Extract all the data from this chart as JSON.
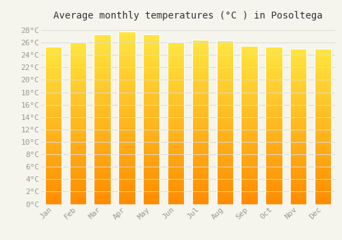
{
  "title": "Average monthly temperatures (°C ) in Posoltega",
  "months": [
    "Jan",
    "Feb",
    "Mar",
    "Apr",
    "May",
    "Jun",
    "Jul",
    "Aug",
    "Sep",
    "Oct",
    "Nov",
    "Dec"
  ],
  "values": [
    25.3,
    26.1,
    27.3,
    27.8,
    27.3,
    26.1,
    26.5,
    26.3,
    25.5,
    25.4,
    25.0,
    25.0
  ],
  "bar_color_mid": "#FFA500",
  "bar_color_top": "#FFD060",
  "bar_color_bottom": "#FF8C00",
  "ylim": [
    0,
    29
  ],
  "ytick_step": 2,
  "background_color": "#F5F5EE",
  "grid_color": "#DCDCD0",
  "title_fontsize": 10,
  "tick_fontsize": 8,
  "font_family": "monospace"
}
